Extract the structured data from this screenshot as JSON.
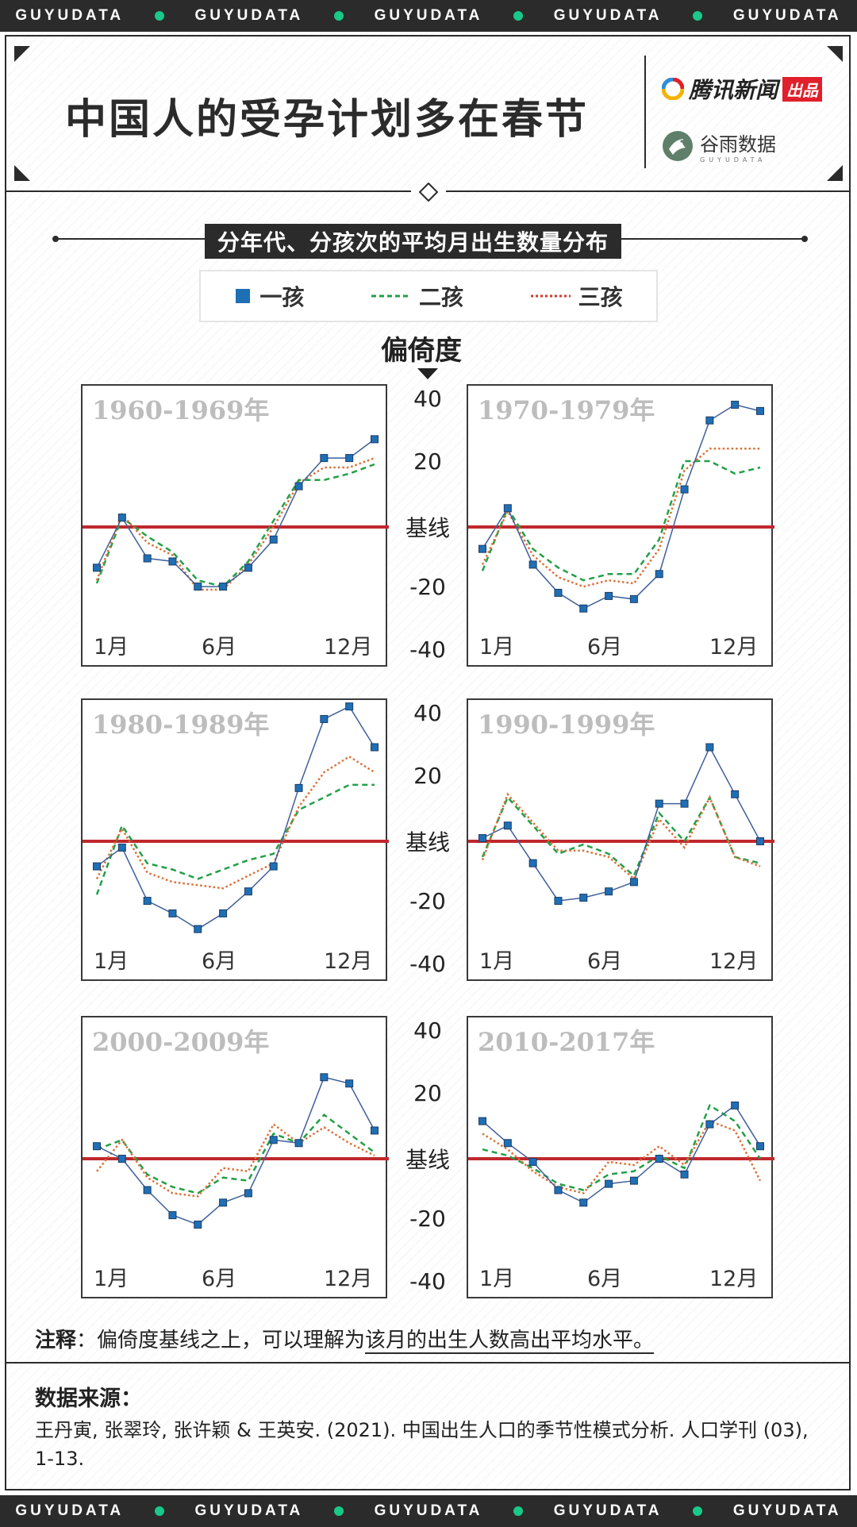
{
  "band": {
    "text": "GUYUDATA"
  },
  "header": {
    "title": "中国人的受孕计划多在春节",
    "logo_tencent": "腾讯新闻",
    "logo_tencent_tag": "出品",
    "logo_guyu": "谷雨数据",
    "logo_guyu_sub": "GUYUDATA"
  },
  "subtitle": "分年代、分孩次的平均月出生数量分布",
  "legend": [
    {
      "label": "一孩",
      "color": "#1f6fb5",
      "style": "square"
    },
    {
      "label": "二孩",
      "color": "#22a047",
      "style": "dashed"
    },
    {
      "label": "三孩",
      "color": "#d13b2a",
      "style": "dotted"
    }
  ],
  "axis": {
    "title": "偏倚度",
    "ticks": [
      "40",
      "20",
      "基线",
      "-20",
      "-40"
    ],
    "x_ticks": [
      "1月",
      "6月",
      "12月"
    ]
  },
  "colors": {
    "baseline": "#c0282d",
    "first": "#1f6fb5",
    "first_line": "#3f5f9a",
    "second": "#22a047",
    "third": "#d9723a"
  },
  "chart_data": [
    {
      "type": "line",
      "title": "1960-1969年",
      "x": [
        1,
        2,
        3,
        4,
        5,
        6,
        7,
        8,
        9,
        10,
        11,
        12
      ],
      "ylim": [
        -40,
        40
      ],
      "baseline": 0,
      "series": [
        {
          "name": "一孩",
          "values": [
            -13,
            3,
            -10,
            -11,
            -19,
            -19,
            -13,
            -4,
            13,
            22,
            22,
            28
          ]
        },
        {
          "name": "二孩",
          "values": [
            -18,
            3,
            -3,
            -8,
            -17,
            -19,
            -11,
            2,
            15,
            15,
            17,
            20
          ]
        },
        {
          "name": "三孩",
          "values": [
            -17,
            4,
            -5,
            -9,
            -20,
            -20,
            -12,
            0,
            14,
            19,
            19,
            22
          ]
        }
      ]
    },
    {
      "type": "line",
      "title": "1970-1979年",
      "x": [
        1,
        2,
        3,
        4,
        5,
        6,
        7,
        8,
        9,
        10,
        11,
        12
      ],
      "ylim": [
        -40,
        40
      ],
      "baseline": 0,
      "series": [
        {
          "name": "一孩",
          "values": [
            -7,
            6,
            -12,
            -21,
            -26,
            -22,
            -23,
            -15,
            12,
            34,
            39,
            37
          ]
        },
        {
          "name": "二孩",
          "values": [
            -14,
            6,
            -7,
            -13,
            -17,
            -15,
            -15,
            -4,
            21,
            21,
            17,
            19
          ]
        },
        {
          "name": "三孩",
          "values": [
            -12,
            5,
            -9,
            -16,
            -19,
            -17,
            -18,
            -7,
            18,
            25,
            25,
            25
          ]
        }
      ]
    },
    {
      "type": "line",
      "title": "1980-1989年",
      "x": [
        1,
        2,
        3,
        4,
        5,
        6,
        7,
        8,
        9,
        10,
        11,
        12
      ],
      "ylim": [
        -40,
        40
      ],
      "baseline": 0,
      "series": [
        {
          "name": "一孩",
          "values": [
            -8,
            -2,
            -19,
            -23,
            -28,
            -23,
            -16,
            -8,
            17,
            39,
            43,
            30
          ]
        },
        {
          "name": "二孩",
          "values": [
            -17,
            5,
            -7,
            -9,
            -12,
            -9,
            -6,
            -4,
            10,
            14,
            18,
            18
          ]
        },
        {
          "name": "三孩",
          "values": [
            -12,
            4,
            -10,
            -13,
            -14,
            -15,
            -11,
            -7,
            11,
            22,
            27,
            22
          ]
        }
      ]
    },
    {
      "type": "line",
      "title": "1990-1999年",
      "x": [
        1,
        2,
        3,
        4,
        5,
        6,
        7,
        8,
        9,
        10,
        11,
        12
      ],
      "ylim": [
        -40,
        40
      ],
      "baseline": 0,
      "series": [
        {
          "name": "一孩",
          "values": [
            1,
            5,
            -7,
            -19,
            -18,
            -16,
            -13,
            12,
            12,
            30,
            15,
            0
          ]
        },
        {
          "name": "二孩",
          "values": [
            -5,
            14,
            5,
            -4,
            -1,
            -4,
            -11,
            9,
            0,
            14,
            -5,
            -7
          ]
        },
        {
          "name": "三孩",
          "values": [
            -6,
            15,
            6,
            -3,
            -3,
            -5,
            -12,
            7,
            -2,
            14,
            -5,
            -8
          ]
        }
      ]
    },
    {
      "type": "line",
      "title": "2000-2009年",
      "x": [
        1,
        2,
        3,
        4,
        5,
        6,
        7,
        8,
        9,
        10,
        11,
        12
      ],
      "ylim": [
        -40,
        40
      ],
      "baseline": 0,
      "series": [
        {
          "name": "一孩",
          "values": [
            4,
            0,
            -10,
            -18,
            -21,
            -14,
            -11,
            6,
            5,
            26,
            24,
            9
          ]
        },
        {
          "name": "二孩",
          "values": [
            3,
            6,
            -5,
            -9,
            -11,
            -6,
            -7,
            8,
            5,
            14,
            8,
            2
          ]
        },
        {
          "name": "三孩",
          "values": [
            -4,
            6,
            -6,
            -11,
            -12,
            -3,
            -4,
            11,
            5,
            10,
            5,
            1
          ]
        }
      ]
    },
    {
      "type": "line",
      "title": "2010-2017年",
      "x": [
        1,
        2,
        3,
        4,
        5,
        6,
        7,
        8,
        9,
        10,
        11,
        12
      ],
      "ylim": [
        -40,
        40
      ],
      "baseline": 0,
      "series": [
        {
          "name": "一孩",
          "values": [
            12,
            5,
            -1,
            -10,
            -14,
            -8,
            -7,
            0,
            -5,
            11,
            17,
            4
          ]
        },
        {
          "name": "二孩",
          "values": [
            3,
            1,
            -3,
            -8,
            -10,
            -5,
            -4,
            1,
            -3,
            17,
            12,
            0
          ]
        },
        {
          "name": "三孩",
          "values": [
            8,
            3,
            -4,
            -9,
            -11,
            -1,
            -2,
            4,
            -2,
            12,
            9,
            -7
          ]
        }
      ]
    }
  ],
  "note": {
    "label": "注释",
    "sep": "：",
    "text": "偏倚度基线之上，可以理解为",
    "highlight": "该月的出生人数高出平均水平。"
  },
  "source": {
    "title": "数据来源：",
    "text": "王丹寅, 张翠玲, 张许颖 &  王英安. (2021). 中国出生人口的季节性模式分析. 人口学刊 (03), 1-13."
  }
}
